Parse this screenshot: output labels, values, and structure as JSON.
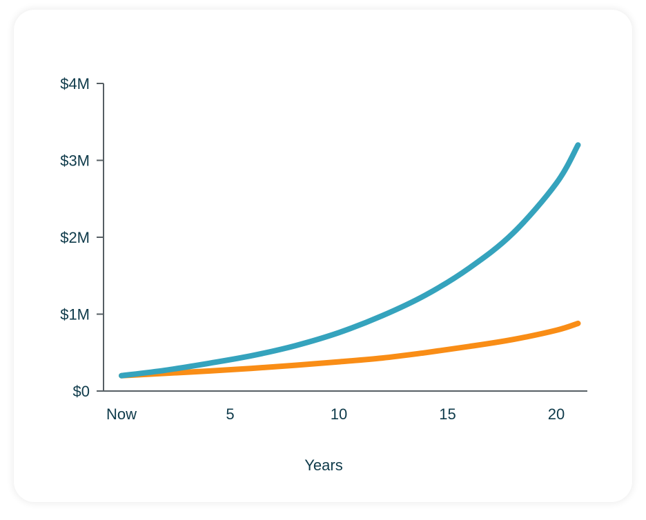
{
  "chart_data": {
    "type": "line",
    "xlabel": "Years",
    "ylabel": "",
    "x_ticks": [
      {
        "value": 0,
        "label": "Now"
      },
      {
        "value": 5,
        "label": "5"
      },
      {
        "value": 10,
        "label": "10"
      },
      {
        "value": 15,
        "label": "15"
      },
      {
        "value": 20,
        "label": "20"
      }
    ],
    "y_ticks": [
      {
        "value": 0,
        "label": "$0"
      },
      {
        "value": 1000000,
        "label": "$1M"
      },
      {
        "value": 2000000,
        "label": "$2M"
      },
      {
        "value": 3000000,
        "label": "$3M"
      },
      {
        "value": 4000000,
        "label": "$4M"
      }
    ],
    "xlim": [
      -0.8,
      21.5
    ],
    "ylim": [
      0,
      4000000
    ],
    "grid": false,
    "series": [
      {
        "color": "#35a3bd",
        "x": [
          0,
          2,
          4,
          6,
          8,
          10,
          12,
          14,
          16,
          18,
          20,
          21
        ],
        "y": [
          200000,
          270000,
          360000,
          460000,
          590000,
          760000,
          980000,
          1250000,
          1600000,
          2050000,
          2700000,
          3200000
        ]
      },
      {
        "color": "#f98d16",
        "x": [
          0,
          2,
          4,
          6,
          8,
          10,
          12,
          14,
          16,
          18,
          20,
          21
        ],
        "y": [
          200000,
          230000,
          260000,
          295000,
          335000,
          380000,
          430000,
          500000,
          580000,
          670000,
          790000,
          880000
        ]
      }
    ]
  }
}
